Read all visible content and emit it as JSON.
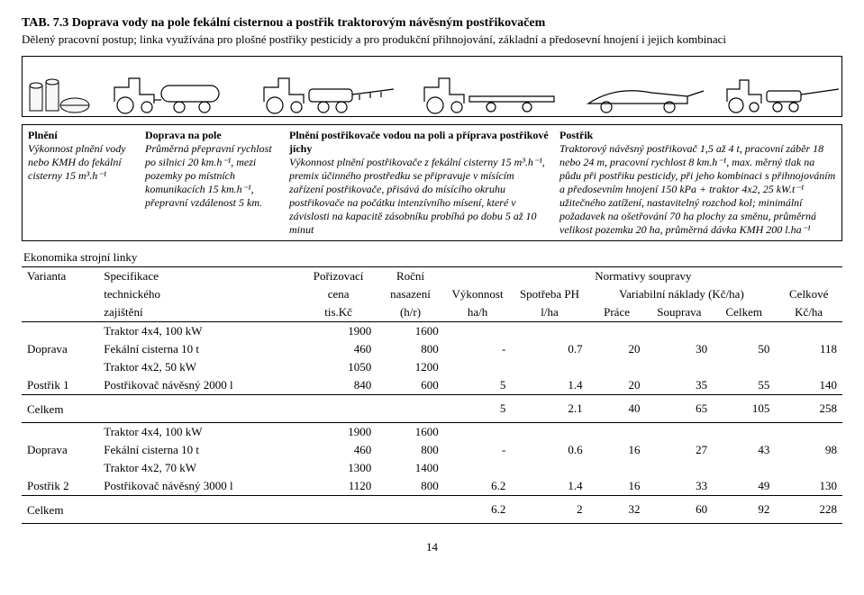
{
  "tab_label": "TAB. 7.3",
  "title_rest": " Doprava vody na pole fekální cisternou a postřik traktorovým návěsným postřikovačem",
  "subtitle": "Dělený pracovní postup; linka využívána pro plošné postřiky pesticidy a pro produkční přihnojování, základní a předosevní hnojení i jejich kombinaci",
  "desc": {
    "c1_head": "Plnění",
    "c1_body": "Výkonnost plnění vody nebo KMH do fekální cisterny 15 m³.h⁻¹",
    "c2_head": "Doprava na pole",
    "c2_body": "Průměrná přepravní rychlost po silnici 20 km.h⁻¹, mezi pozemky po místních komunikacích 15 km.h⁻¹, přepravní vzdálenost 5 km.",
    "c3_head": "Plnění postřikovače vodou na poli a příprava postřikové jíchy",
    "c3_body": "Výkonnost plnění postřikovače z fekální cisterny 15 m³.h⁻¹, premix účinného prostředku se připravuje v mísícím zařízení postřikovače, přisává do mísícího okruhu postřikovače na počátku intenzívního mísení, které v závislosti na kapacitě zásobníku probíhá po dobu 5 až 10 minut",
    "c4_head": "Postřik",
    "c4_body": "Traktorový návěsný postřikovač 1,5 až 4 t, pracovní záběr 18 nebo 24 m, pracovní rychlost 8 km.h⁻¹, max. měrný tlak na půdu při postřiku pesticidy, při jeho kombinaci s přihnojováním a předosevním hnojení 150 kPa + traktor 4x2, 25 kW.t⁻¹ užitečného zatížení, nastavitelný rozchod kol;\nminimální požadavek na ošetřování 70 ha plochy za směnu, průměrná velikost pozemku 20 ha, průměrná dávka KMH 200 l.ha⁻¹"
  },
  "eco_heading": "Ekonomika strojní linky",
  "thead": {
    "varianta": "Varianta",
    "spec": "Specifikace",
    "poriz": "Pořizovací",
    "rocni": "Roční",
    "norm": "Normativy soupravy",
    "tech": "technického",
    "cena": "cena",
    "nasaz": "nasazení",
    "vykon": "Výkonnost",
    "spotreba": "Spotřeba PH",
    "varnak": "Variabilní náklady  (Kč/ha)",
    "celkove": "Celkové",
    "zajisteni": "zajištění",
    "tiskc": "tis.Kč",
    "hr": "(h/r)",
    "hah": "ha/h",
    "lha": "l/ha",
    "prace": "Práce",
    "souprava": "Souprava",
    "celkem": "Celkem",
    "kcha": "Kč/ha"
  },
  "rows": [
    {
      "group": "",
      "spec": "Traktor 4x4, 100 kW",
      "cena": "1900",
      "hr": "1600",
      "vyk": "",
      "sp": "",
      "pr": "",
      "so": "",
      "ce": "",
      "kc": "",
      "bt": true
    },
    {
      "group": "Doprava",
      "spec": "Fekální cisterna 10 t",
      "cena": "460",
      "hr": "800",
      "vyk": "-",
      "sp": "0.7",
      "pr": "20",
      "so": "30",
      "ce": "50",
      "kc": "118",
      "bt": false
    },
    {
      "group": "",
      "spec": "Traktor 4x2, 50 kW",
      "cena": "1050",
      "hr": "1200",
      "vyk": "",
      "sp": "",
      "pr": "",
      "so": "",
      "ce": "",
      "kc": "",
      "bt": false
    },
    {
      "group": "Postřik 1",
      "spec": "Postřikovač návěsný 2000 l",
      "cena": "840",
      "hr": "600",
      "vyk": "5",
      "sp": "1.4",
      "pr": "20",
      "so": "35",
      "ce": "55",
      "kc": "140",
      "bt": false,
      "bb": true
    }
  ],
  "sum1": {
    "label": "Celkem",
    "vyk": "5",
    "sp": "2.1",
    "pr": "40",
    "so": "65",
    "ce": "105",
    "kc": "258"
  },
  "rows2": [
    {
      "group": "",
      "spec": "Traktor 4x4, 100 kW",
      "cena": "1900",
      "hr": "1600",
      "vyk": "",
      "sp": "",
      "pr": "",
      "so": "",
      "ce": "",
      "kc": "",
      "bt": true
    },
    {
      "group": "Doprava",
      "spec": "Fekální cisterna 10 t",
      "cena": "460",
      "hr": "800",
      "vyk": "-",
      "sp": "0.6",
      "pr": "16",
      "so": "27",
      "ce": "43",
      "kc": "98",
      "bt": false
    },
    {
      "group": "",
      "spec": "Traktor 4x2, 70 kW",
      "cena": "1300",
      "hr": "1400",
      "vyk": "",
      "sp": "",
      "pr": "",
      "so": "",
      "ce": "",
      "kc": "",
      "bt": false
    },
    {
      "group": "Postřik 2",
      "spec": "Postřikovač návěsný 3000 l",
      "cena": "1120",
      "hr": "800",
      "vyk": "6.2",
      "sp": "1.4",
      "pr": "16",
      "so": "33",
      "ce": "49",
      "kc": "130",
      "bt": false,
      "bb": true
    }
  ],
  "sum2": {
    "label": "Celkem",
    "vyk": "6.2",
    "sp": "2",
    "pr": "32",
    "so": "60",
    "ce": "92",
    "kc": "228"
  },
  "page": "14"
}
